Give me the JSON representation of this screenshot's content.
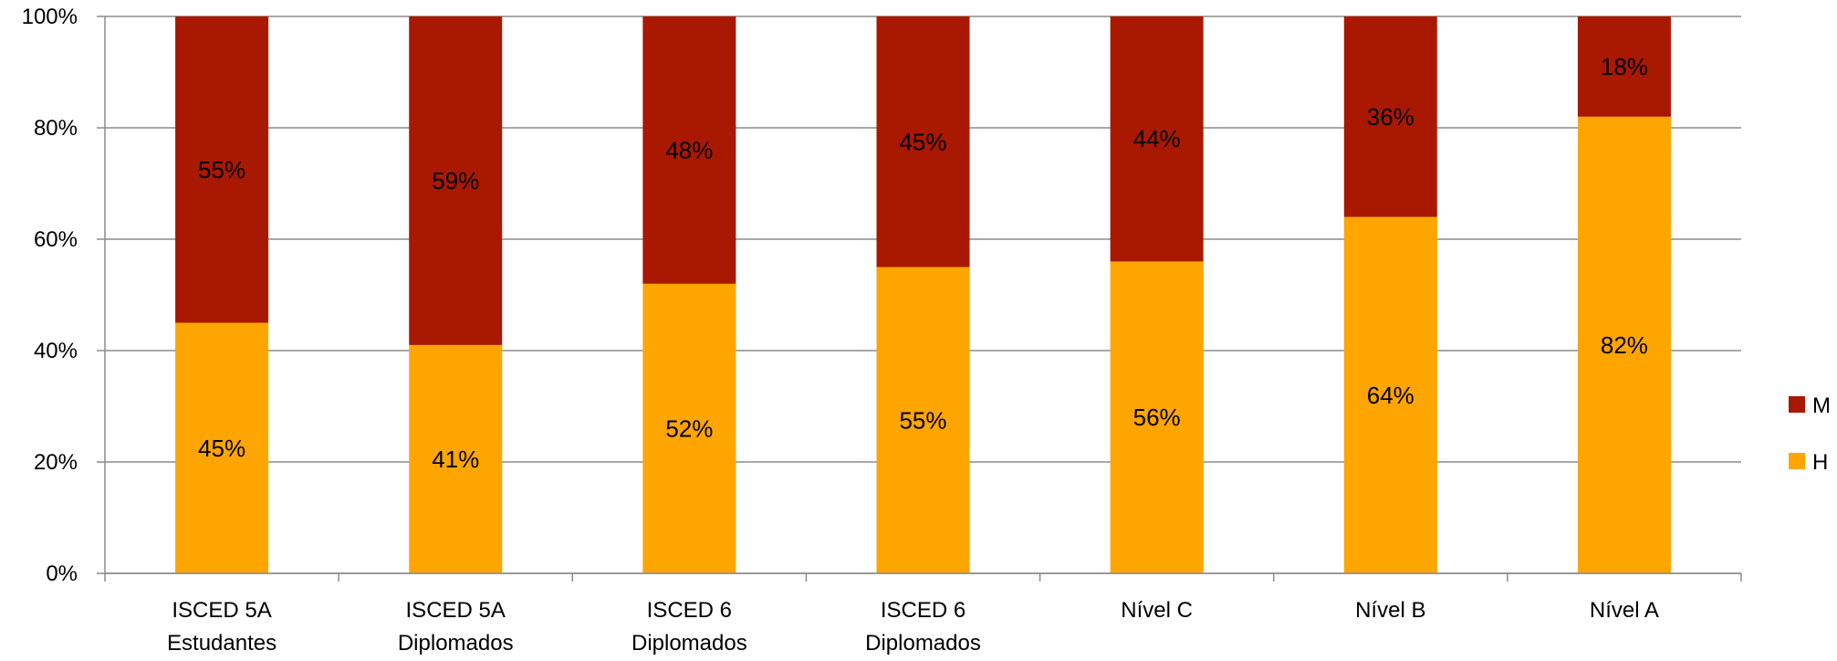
{
  "chart_data": {
    "type": "bar",
    "stacked": true,
    "percent": true,
    "categories": [
      [
        "ISCED 5A",
        "Estudantes"
      ],
      [
        "ISCED 5A",
        "Diplomados"
      ],
      [
        "ISCED 6",
        "Diplomados"
      ],
      [
        "ISCED 6",
        "Diplomados"
      ],
      [
        "Nível C"
      ],
      [
        "Nível B"
      ],
      [
        "Nível A"
      ]
    ],
    "series": [
      {
        "name": "H",
        "color": "#FFA500",
        "values": [
          45,
          41,
          52,
          55,
          56,
          64,
          82
        ],
        "labels": [
          "45%",
          "41%",
          "52%",
          "55%",
          "56%",
          "64%",
          "82%"
        ]
      },
      {
        "name": "M",
        "color": "#A91800",
        "values": [
          55,
          59,
          48,
          45,
          44,
          36,
          18
        ],
        "labels": [
          "55%",
          "59%",
          "48%",
          "45%",
          "44%",
          "36%",
          "18%"
        ]
      }
    ],
    "ylim": [
      0,
      100
    ],
    "yticks": [
      "0%",
      "20%",
      "40%",
      "60%",
      "80%",
      "100%"
    ],
    "grid": true,
    "legend": {
      "position": "right",
      "entries": [
        "M",
        "H"
      ]
    },
    "title": "",
    "xlabel": "",
    "ylabel": ""
  }
}
